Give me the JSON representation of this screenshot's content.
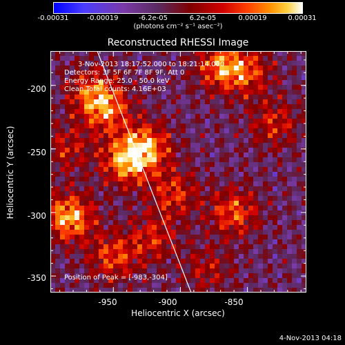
{
  "colorbar": {
    "ticks": [
      "-0.00031",
      "-0.00019",
      "-6.2e-05",
      "6.2e-05",
      "0.00019",
      "0.00031"
    ],
    "unit": "(photons cm⁻² s⁻¹ asec⁻²)"
  },
  "annotations": {
    "time": "3-Nov-2013 18:17:52.000 to 18:21:14.000",
    "detectors": "Detectors: 3F 5F 6F 7F 8F 9F, Att 0",
    "energy": "Energy Range: 25.0 - 50.0 keV",
    "clean": "Clean     Total counts: 4.16E+03",
    "peak": "Position of Peak = [-983,-304]"
  },
  "footer": {
    "date": "4-Nov-2013 04:18"
  },
  "chart_data": {
    "type": "heatmap",
    "title": "Reconstructed RHESSI Image",
    "xlabel": "Heliocentric X (arcsec)",
    "ylabel": "Heliocentric Y (arcsec)",
    "xlim": [
      -997,
      -806
    ],
    "ylim": [
      -363,
      -173
    ],
    "x_ticks": [
      -950,
      -900,
      -850
    ],
    "y_ticks": [
      -200,
      -250,
      -300,
      -350
    ],
    "x_tick_labels": [
      "-950",
      "-900",
      "-850"
    ],
    "y_tick_labels": [
      "-200",
      "-250",
      "-300",
      "-350"
    ],
    "color_range": [
      -0.00031,
      0.00031
    ],
    "limb_line": [
      [
        -962,
        -173
      ],
      [
        -892,
        -363
      ]
    ],
    "sources": [
      {
        "x": -983,
        "y": -304,
        "value": 0.00031
      },
      {
        "x": -940,
        "y": -260,
        "value": 0.00028
      },
      {
        "x": -925,
        "y": -248,
        "value": 0.00025
      },
      {
        "x": -955,
        "y": -220,
        "value": 0.00022
      },
      {
        "x": -965,
        "y": -205,
        "value": 0.0002
      },
      {
        "x": -870,
        "y": -185,
        "value": 0.00024
      },
      {
        "x": -850,
        "y": -190,
        "value": 0.00018
      },
      {
        "x": -860,
        "y": -300,
        "value": 0.00022
      },
      {
        "x": -905,
        "y": -285,
        "value": 0.00018
      },
      {
        "x": -950,
        "y": -335,
        "value": 0.0002
      },
      {
        "x": -920,
        "y": -320,
        "value": 0.00016
      },
      {
        "x": -985,
        "y": -250,
        "value": 0.00014
      },
      {
        "x": -830,
        "y": -230,
        "value": 0.00016
      },
      {
        "x": -880,
        "y": -345,
        "value": 0.00012
      }
    ]
  }
}
